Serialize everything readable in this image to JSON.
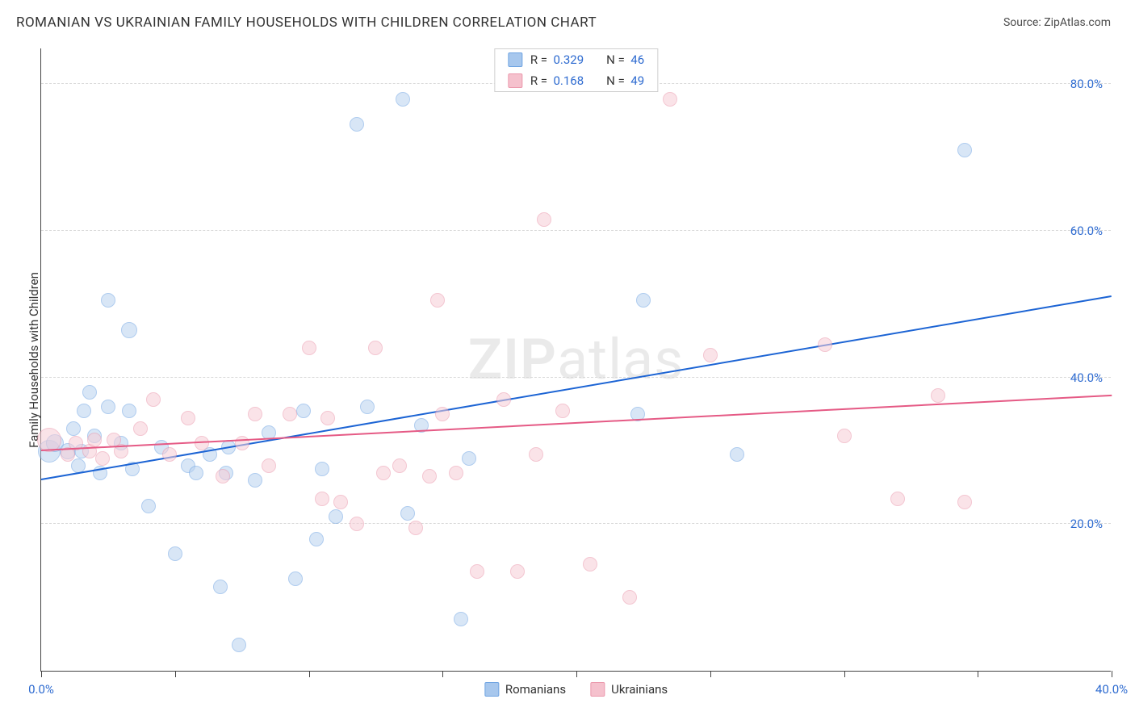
{
  "title": "ROMANIAN VS UKRAINIAN FAMILY HOUSEHOLDS WITH CHILDREN CORRELATION CHART",
  "source": "Source: ZipAtlas.com",
  "watermark_bold": "ZIP",
  "watermark_light": "atlas",
  "yaxis_label": "Family Households with Children",
  "chart": {
    "type": "scatter",
    "xlim": [
      0,
      40
    ],
    "ylim": [
      0,
      85
    ],
    "background_color": "#ffffff",
    "grid_color": "#d9d9d9",
    "y_gridlines": [
      20,
      40,
      60,
      80
    ],
    "y_tick_labels": [
      "20.0%",
      "40.0%",
      "60.0%",
      "80.0%"
    ],
    "x_ticks": [
      0,
      5,
      10,
      15,
      20,
      25,
      30,
      35,
      40
    ],
    "x_tick_labels_shown": {
      "0": "0.0%",
      "40": "40.0%"
    },
    "series": [
      {
        "name": "Romanians",
        "label": "Romanians",
        "fill": "#b9d2f0",
        "stroke": "#6fa4e2",
        "fill_opacity": 0.55,
        "radius_base": 9,
        "regression": {
          "x1": 0,
          "y1": 26,
          "x2": 40,
          "y2": 51,
          "color": "#1c64d4"
        },
        "r_value": "0.329",
        "n_value": "46",
        "points": [
          {
            "x": 0.3,
            "y": 30,
            "r": 14
          },
          {
            "x": 0.5,
            "y": 31,
            "r": 11
          },
          {
            "x": 1.0,
            "y": 30,
            "r": 10
          },
          {
            "x": 1.2,
            "y": 33,
            "r": 9
          },
          {
            "x": 1.4,
            "y": 28,
            "r": 9
          },
          {
            "x": 1.5,
            "y": 30,
            "r": 9
          },
          {
            "x": 1.6,
            "y": 35.5,
            "r": 9
          },
          {
            "x": 1.8,
            "y": 38,
            "r": 9
          },
          {
            "x": 2.0,
            "y": 32,
            "r": 9
          },
          {
            "x": 2.2,
            "y": 27,
            "r": 9
          },
          {
            "x": 2.5,
            "y": 50.5,
            "r": 9
          },
          {
            "x": 2.5,
            "y": 36,
            "r": 9
          },
          {
            "x": 3.0,
            "y": 31,
            "r": 9
          },
          {
            "x": 3.3,
            "y": 46.5,
            "r": 10
          },
          {
            "x": 3.3,
            "y": 35.5,
            "r": 9
          },
          {
            "x": 3.4,
            "y": 27.5,
            "r": 9
          },
          {
            "x": 4.0,
            "y": 22.5,
            "r": 9
          },
          {
            "x": 4.5,
            "y": 30.5,
            "r": 9
          },
          {
            "x": 5.0,
            "y": 16,
            "r": 9
          },
          {
            "x": 5.5,
            "y": 28,
            "r": 9
          },
          {
            "x": 5.8,
            "y": 27,
            "r": 9
          },
          {
            "x": 6.3,
            "y": 29.5,
            "r": 9
          },
          {
            "x": 6.7,
            "y": 11.5,
            "r": 9
          },
          {
            "x": 6.9,
            "y": 27,
            "r": 9
          },
          {
            "x": 7.0,
            "y": 30.5,
            "r": 9
          },
          {
            "x": 7.4,
            "y": 3.5,
            "r": 9
          },
          {
            "x": 8.0,
            "y": 26,
            "r": 9
          },
          {
            "x": 8.5,
            "y": 32.5,
            "r": 9
          },
          {
            "x": 9.5,
            "y": 12.5,
            "r": 9
          },
          {
            "x": 9.8,
            "y": 35.5,
            "r": 9
          },
          {
            "x": 10.3,
            "y": 18,
            "r": 9
          },
          {
            "x": 10.5,
            "y": 27.5,
            "r": 9
          },
          {
            "x": 11.0,
            "y": 21,
            "r": 9
          },
          {
            "x": 11.8,
            "y": 74.5,
            "r": 9
          },
          {
            "x": 12.2,
            "y": 36,
            "r": 9
          },
          {
            "x": 13.5,
            "y": 78,
            "r": 9
          },
          {
            "x": 13.7,
            "y": 21.5,
            "r": 9
          },
          {
            "x": 14.2,
            "y": 33.5,
            "r": 9
          },
          {
            "x": 15.7,
            "y": 7.0,
            "r": 9
          },
          {
            "x": 16.0,
            "y": 29,
            "r": 9
          },
          {
            "x": 22.3,
            "y": 35,
            "r": 9
          },
          {
            "x": 22.5,
            "y": 50.5,
            "r": 9
          },
          {
            "x": 26.0,
            "y": 29.5,
            "r": 9
          },
          {
            "x": 34.5,
            "y": 71,
            "r": 9
          }
        ]
      },
      {
        "name": "Ukrainians",
        "label": "Ukrainians",
        "fill": "#f7cdd7",
        "stroke": "#eb98ac",
        "fill_opacity": 0.55,
        "radius_base": 9,
        "regression": {
          "x1": 0,
          "y1": 30,
          "x2": 40,
          "y2": 37.5,
          "color": "#e55a85"
        },
        "r_value": "0.168",
        "n_value": "49",
        "points": [
          {
            "x": 0.3,
            "y": 31.5,
            "r": 15
          },
          {
            "x": 1.0,
            "y": 29.5,
            "r": 9
          },
          {
            "x": 1.3,
            "y": 31,
            "r": 9
          },
          {
            "x": 1.8,
            "y": 30,
            "r": 9
          },
          {
            "x": 2.0,
            "y": 31.5,
            "r": 9
          },
          {
            "x": 2.3,
            "y": 29,
            "r": 9
          },
          {
            "x": 2.7,
            "y": 31.5,
            "r": 9
          },
          {
            "x": 3.0,
            "y": 30,
            "r": 9
          },
          {
            "x": 3.7,
            "y": 33,
            "r": 9
          },
          {
            "x": 4.2,
            "y": 37,
            "r": 9
          },
          {
            "x": 4.8,
            "y": 29.5,
            "r": 9
          },
          {
            "x": 5.5,
            "y": 34.5,
            "r": 9
          },
          {
            "x": 6.0,
            "y": 31,
            "r": 9
          },
          {
            "x": 6.8,
            "y": 26.5,
            "r": 9
          },
          {
            "x": 7.5,
            "y": 31,
            "r": 9
          },
          {
            "x": 8.0,
            "y": 35,
            "r": 9
          },
          {
            "x": 8.5,
            "y": 28,
            "r": 9
          },
          {
            "x": 9.3,
            "y": 35,
            "r": 9
          },
          {
            "x": 10.0,
            "y": 44,
            "r": 9
          },
          {
            "x": 10.5,
            "y": 23.5,
            "r": 9
          },
          {
            "x": 10.7,
            "y": 34.5,
            "r": 9
          },
          {
            "x": 11.2,
            "y": 23,
            "r": 9
          },
          {
            "x": 11.8,
            "y": 20,
            "r": 9
          },
          {
            "x": 12.5,
            "y": 44,
            "r": 9
          },
          {
            "x": 12.8,
            "y": 27,
            "r": 9
          },
          {
            "x": 13.4,
            "y": 28,
            "r": 9
          },
          {
            "x": 14.0,
            "y": 19.5,
            "r": 9
          },
          {
            "x": 14.5,
            "y": 26.5,
            "r": 9
          },
          {
            "x": 14.8,
            "y": 50.5,
            "r": 9
          },
          {
            "x": 15.0,
            "y": 35,
            "r": 9
          },
          {
            "x": 15.5,
            "y": 27,
            "r": 9
          },
          {
            "x": 16.3,
            "y": 13.5,
            "r": 9
          },
          {
            "x": 17.3,
            "y": 37,
            "r": 9
          },
          {
            "x": 17.8,
            "y": 13.5,
            "r": 9
          },
          {
            "x": 18.5,
            "y": 29.5,
            "r": 9
          },
          {
            "x": 18.8,
            "y": 61.5,
            "r": 9
          },
          {
            "x": 19.5,
            "y": 35.5,
            "r": 9
          },
          {
            "x": 20.5,
            "y": 14.5,
            "r": 9
          },
          {
            "x": 22.0,
            "y": 10,
            "r": 9
          },
          {
            "x": 23.5,
            "y": 78,
            "r": 9
          },
          {
            "x": 25.0,
            "y": 43,
            "r": 9
          },
          {
            "x": 29.3,
            "y": 44.5,
            "r": 9
          },
          {
            "x": 30.0,
            "y": 32,
            "r": 9
          },
          {
            "x": 32.0,
            "y": 23.5,
            "r": 9
          },
          {
            "x": 33.5,
            "y": 37.5,
            "r": 9
          },
          {
            "x": 34.5,
            "y": 23,
            "r": 9
          }
        ]
      }
    ]
  },
  "legend_top": [
    {
      "swatch_fill": "#a7c7ed",
      "swatch_stroke": "#6fa4e2",
      "r_label": "R =",
      "r_value": "0.329",
      "n_label": "N =",
      "n_value": "46"
    },
    {
      "swatch_fill": "#f5c1cd",
      "swatch_stroke": "#eb98ac",
      "r_label": "R =",
      "r_value": "0.168",
      "n_label": "N =",
      "n_value": "49"
    }
  ],
  "legend_bottom": [
    {
      "swatch_fill": "#a7c7ed",
      "swatch_stroke": "#6fa4e2",
      "label": "Romanians"
    },
    {
      "swatch_fill": "#f5c1cd",
      "swatch_stroke": "#eb98ac",
      "label": "Ukrainians"
    }
  ]
}
